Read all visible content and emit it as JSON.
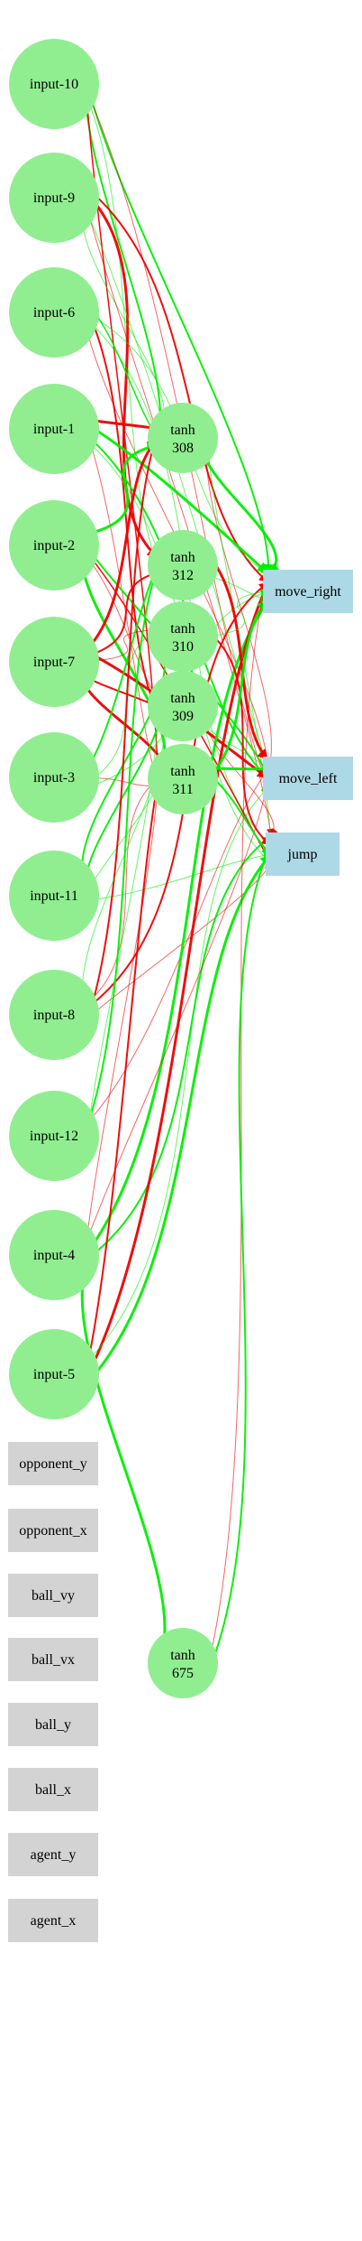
{
  "colors": {
    "node_green": "#90ee90",
    "output_blue": "#add8e6",
    "unused_gray": "#d3d3d3",
    "positive_edge": "#00ee00",
    "negative_edge": "#ee0000"
  },
  "inputs": [
    {
      "id": "input-10",
      "label": "input-10"
    },
    {
      "id": "input-9",
      "label": "input-9"
    },
    {
      "id": "input-6",
      "label": "input-6"
    },
    {
      "id": "input-1",
      "label": "input-1"
    },
    {
      "id": "input-2",
      "label": "input-2"
    },
    {
      "id": "input-7",
      "label": "input-7"
    },
    {
      "id": "input-3",
      "label": "input-3"
    },
    {
      "id": "input-11",
      "label": "input-11"
    },
    {
      "id": "input-8",
      "label": "input-8"
    },
    {
      "id": "input-12",
      "label": "input-12"
    },
    {
      "id": "input-4",
      "label": "input-4"
    },
    {
      "id": "input-5",
      "label": "input-5"
    }
  ],
  "hidden": [
    {
      "id": "h308",
      "line1": "tanh",
      "line2": "308"
    },
    {
      "id": "h312",
      "line1": "tanh",
      "line2": "312"
    },
    {
      "id": "h310",
      "line1": "tanh",
      "line2": "310"
    },
    {
      "id": "h309",
      "line1": "tanh",
      "line2": "309"
    },
    {
      "id": "h311",
      "line1": "tanh",
      "line2": "311"
    },
    {
      "id": "h675",
      "line1": "tanh",
      "line2": "675"
    }
  ],
  "outputs": [
    {
      "id": "move_right",
      "label": "move_right"
    },
    {
      "id": "move_left",
      "label": "move_left"
    },
    {
      "id": "jump",
      "label": "jump"
    }
  ],
  "unused": [
    {
      "id": "opponent_y",
      "label": "opponent_y"
    },
    {
      "id": "opponent_x",
      "label": "opponent_x"
    },
    {
      "id": "ball_vy",
      "label": "ball_vy"
    },
    {
      "id": "ball_vx",
      "label": "ball_vx"
    },
    {
      "id": "ball_y",
      "label": "ball_y"
    },
    {
      "id": "ball_x",
      "label": "ball_x"
    },
    {
      "id": "agent_y",
      "label": "agent_y"
    },
    {
      "id": "agent_x",
      "label": "agent_x"
    }
  ],
  "edges": [
    {
      "from": "input-10",
      "to": "move_right",
      "sign": "pos",
      "weight": 2
    },
    {
      "from": "input-10",
      "to": "h308",
      "sign": "pos",
      "weight": 2
    },
    {
      "from": "input-10",
      "to": "h311",
      "sign": "neg",
      "weight": 1.5
    },
    {
      "from": "input-10",
      "to": "move_left",
      "sign": "neg",
      "weight": 1
    },
    {
      "from": "input-10",
      "to": "h312",
      "sign": "pos",
      "weight": 1
    },
    {
      "from": "input-9",
      "to": "move_right",
      "sign": "neg",
      "weight": 2
    },
    {
      "from": "input-9",
      "to": "h312",
      "sign": "neg",
      "weight": 3
    },
    {
      "from": "input-9",
      "to": "h308",
      "sign": "pos",
      "weight": 1
    },
    {
      "from": "input-9",
      "to": "jump",
      "sign": "neg",
      "weight": 1
    },
    {
      "from": "input-9",
      "to": "move_left",
      "sign": "pos",
      "weight": 1
    },
    {
      "from": "input-6",
      "to": "h308",
      "sign": "pos",
      "weight": 1.5
    },
    {
      "from": "input-6",
      "to": "h309",
      "sign": "neg",
      "weight": 2
    },
    {
      "from": "input-6",
      "to": "move_right",
      "sign": "pos",
      "weight": 1
    },
    {
      "from": "input-6",
      "to": "jump",
      "sign": "pos",
      "weight": 1
    },
    {
      "from": "input-6",
      "to": "move_left",
      "sign": "neg",
      "weight": 1
    },
    {
      "from": "input-1",
      "to": "h308",
      "sign": "neg",
      "weight": 3
    },
    {
      "from": "input-1",
      "to": "move_right",
      "sign": "pos",
      "weight": 3
    },
    {
      "from": "input-1",
      "to": "h311",
      "sign": "neg",
      "weight": 1
    },
    {
      "from": "input-1",
      "to": "move_left",
      "sign": "pos",
      "weight": 2
    },
    {
      "from": "input-1",
      "to": "jump",
      "sign": "pos",
      "weight": 1
    },
    {
      "from": "input-2",
      "to": "h308",
      "sign": "pos",
      "weight": 3
    },
    {
      "from": "input-2",
      "to": "h311",
      "sign": "pos",
      "weight": 3
    },
    {
      "from": "input-2",
      "to": "move_left",
      "sign": "pos",
      "weight": 2
    },
    {
      "from": "input-2",
      "to": "jump",
      "sign": "neg",
      "weight": 1.5
    },
    {
      "from": "input-2",
      "to": "h309",
      "sign": "neg",
      "weight": 1
    },
    {
      "from": "input-7",
      "to": "h308",
      "sign": "neg",
      "weight": 3
    },
    {
      "from": "input-7",
      "to": "h312",
      "sign": "neg",
      "weight": 2
    },
    {
      "from": "input-7",
      "to": "h310",
      "sign": "neg",
      "weight": 1
    },
    {
      "from": "input-7",
      "to": "h311",
      "sign": "neg",
      "weight": 3
    },
    {
      "from": "input-7",
      "to": "h309",
      "sign": "neg",
      "weight": 2
    },
    {
      "from": "input-7",
      "to": "move_left",
      "sign": "neg",
      "weight": 3
    },
    {
      "from": "input-3",
      "to": "h312",
      "sign": "pos",
      "weight": 2
    },
    {
      "from": "input-3",
      "to": "h311",
      "sign": "neg",
      "weight": 1
    },
    {
      "from": "input-3",
      "to": "h310",
      "sign": "pos",
      "weight": 1
    },
    {
      "from": "input-3",
      "to": "move_right",
      "sign": "pos",
      "weight": 1
    },
    {
      "from": "input-11",
      "to": "h310",
      "sign": "pos",
      "weight": 2
    },
    {
      "from": "input-11",
      "to": "h309",
      "sign": "pos",
      "weight": 2
    },
    {
      "from": "input-11",
      "to": "h311",
      "sign": "pos",
      "weight": 1
    },
    {
      "from": "input-11",
      "to": "jump",
      "sign": "pos",
      "weight": 1
    },
    {
      "from": "input-8",
      "to": "h308",
      "sign": "neg",
      "weight": 2
    },
    {
      "from": "input-8",
      "to": "h311",
      "sign": "neg",
      "weight": 1
    },
    {
      "from": "input-8",
      "to": "move_right",
      "sign": "neg",
      "weight": 2
    },
    {
      "from": "input-8",
      "to": "h309",
      "sign": "pos",
      "weight": 1
    },
    {
      "from": "input-8",
      "to": "jump",
      "sign": "neg",
      "weight": 1
    },
    {
      "from": "input-12",
      "to": "h309",
      "sign": "pos",
      "weight": 1
    },
    {
      "from": "input-12",
      "to": "move_left",
      "sign": "neg",
      "weight": 1
    },
    {
      "from": "input-12",
      "to": "h312",
      "sign": "pos",
      "weight": 2
    },
    {
      "from": "input-4",
      "to": "move_right",
      "sign": "pos",
      "weight": 3
    },
    {
      "from": "input-4",
      "to": "jump",
      "sign": "pos",
      "weight": 2
    },
    {
      "from": "input-4",
      "to": "h675",
      "sign": "pos",
      "weight": 3
    },
    {
      "from": "input-4",
      "to": "move_left",
      "sign": "neg",
      "weight": 1
    },
    {
      "from": "input-4",
      "to": "h311",
      "sign": "neg",
      "weight": 1
    },
    {
      "from": "input-5",
      "to": "h311",
      "sign": "neg",
      "weight": 2
    },
    {
      "from": "input-5",
      "to": "move_right",
      "sign": "neg",
      "weight": 3
    },
    {
      "from": "input-5",
      "to": "jump",
      "sign": "pos",
      "weight": 3
    },
    {
      "from": "input-5",
      "to": "move_left",
      "sign": "pos",
      "weight": 1
    },
    {
      "from": "h308",
      "to": "move_right",
      "sign": "pos",
      "weight": 3
    },
    {
      "from": "h308",
      "to": "move_left",
      "sign": "neg",
      "weight": 1
    },
    {
      "from": "h308",
      "to": "jump",
      "sign": "pos",
      "weight": 1
    },
    {
      "from": "h312",
      "to": "move_right",
      "sign": "pos",
      "weight": 1
    },
    {
      "from": "h312",
      "to": "move_left",
      "sign": "neg",
      "weight": 3
    },
    {
      "from": "h310",
      "to": "jump",
      "sign": "neg",
      "weight": 2
    },
    {
      "from": "h310",
      "to": "move_right",
      "sign": "pos",
      "weight": 1
    },
    {
      "from": "h309",
      "to": "move_left",
      "sign": "pos",
      "weight": 1
    },
    {
      "from": "h309",
      "to": "jump",
      "sign": "neg",
      "weight": 1
    },
    {
      "from": "h311",
      "to": "move_left",
      "sign": "pos",
      "weight": 3
    },
    {
      "from": "h311",
      "to": "jump",
      "sign": "pos",
      "weight": 2
    },
    {
      "from": "h311",
      "to": "move_right",
      "sign": "pos",
      "weight": 3
    },
    {
      "from": "h675",
      "to": "move_right",
      "sign": "neg",
      "weight": 1
    },
    {
      "from": "h675",
      "to": "jump",
      "sign": "pos",
      "weight": 2
    }
  ]
}
